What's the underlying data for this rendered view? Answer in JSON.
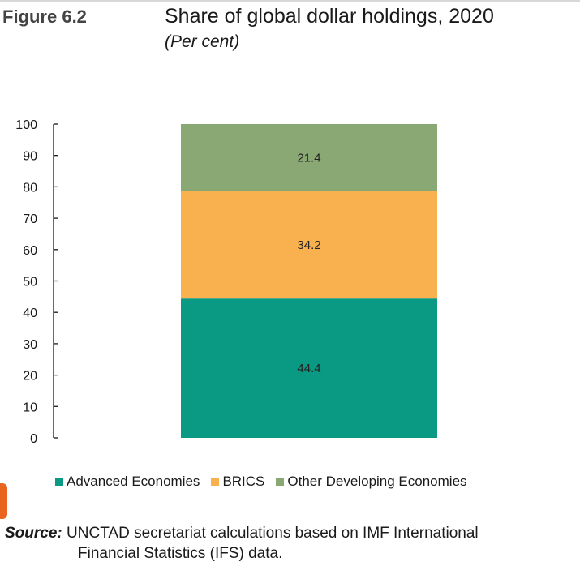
{
  "figure_label": "Figure 6.2",
  "source": {
    "key": "Source:",
    "line1": "UNCTAD secretariat calculations based on IMF International",
    "line2": "Financial Statistics (IFS) data."
  },
  "chart_data": {
    "type": "bar",
    "stacked": true,
    "title": "Share of global dollar holdings, 2020",
    "subtitle": "(Per cent)",
    "categories": [
      ""
    ],
    "ylim": [
      0,
      100
    ],
    "yticks": [
      0,
      10,
      20,
      30,
      40,
      50,
      60,
      70,
      80,
      90,
      100
    ],
    "grid": false,
    "legend_position": "bottom",
    "series": [
      {
        "name": "Advanced Economies",
        "values": [
          44.4
        ],
        "label": "44.4",
        "color": "#0a9a84"
      },
      {
        "name": "BRICS",
        "values": [
          34.2
        ],
        "label": "34.2",
        "color": "#f9b04e"
      },
      {
        "name": "Other Developing Economies",
        "values": [
          21.4
        ],
        "label": "21.4",
        "color": "#8aa874"
      }
    ]
  }
}
